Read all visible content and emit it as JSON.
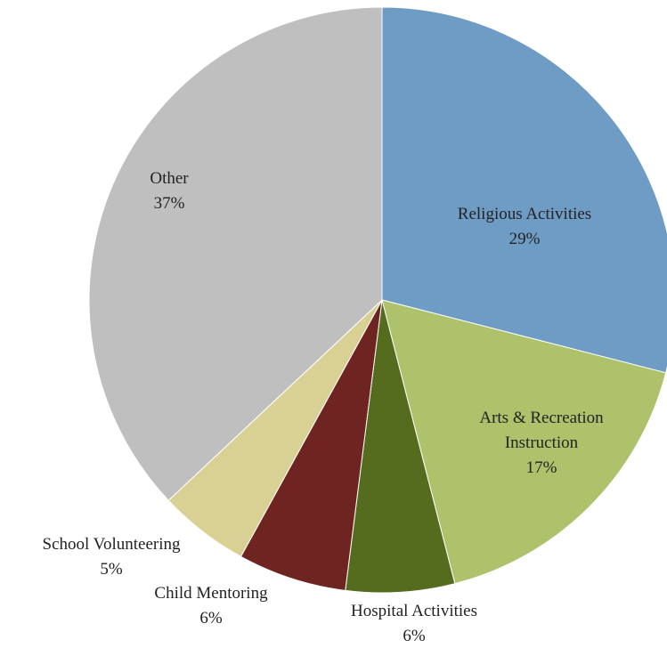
{
  "chart_data": {
    "type": "pie",
    "categories": [
      "Religious Activities",
      "Arts & Recreation Instruction",
      "Hospital Activities",
      "Child Mentoring",
      "School Volunteering",
      "Other"
    ],
    "values": [
      29,
      17,
      6,
      6,
      5,
      37
    ],
    "value_labels": [
      "29%",
      "17%",
      "6%",
      "6%",
      "5%",
      "37%"
    ],
    "colors": [
      "#6f9cc5",
      "#adc26a",
      "#556b1e",
      "#6e2421",
      "#d8d193",
      "#bfbfbf"
    ]
  }
}
